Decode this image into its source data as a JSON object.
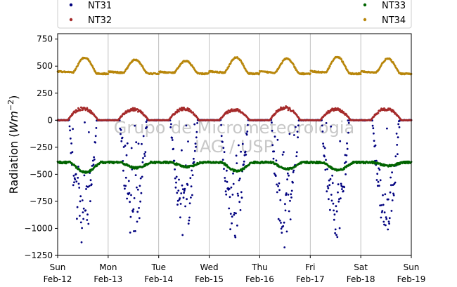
{
  "chart_data": {
    "type": "scatter",
    "ylabel": "Radiation (W m⁻²)",
    "ylim": [
      -1250,
      800
    ],
    "yticks": [
      -1250,
      -1000,
      -750,
      -500,
      -250,
      0,
      250,
      500,
      750
    ],
    "xlim_days": [
      0,
      7
    ],
    "grid": "vertical",
    "legend_placement": "top",
    "x_ticks": [
      {
        "day": "Sun",
        "date": "Feb-12"
      },
      {
        "day": "Mon",
        "date": "Feb-13"
      },
      {
        "day": "Tue",
        "date": "Feb-14"
      },
      {
        "day": "Wed",
        "date": "Feb-15"
      },
      {
        "day": "Thu",
        "date": "Feb-16"
      },
      {
        "day": "Fri",
        "date": "Feb-17"
      },
      {
        "day": "Sat",
        "date": "Feb-18"
      },
      {
        "day": "Sun",
        "date": "Feb-19"
      }
    ],
    "watermark": {
      "line1": "Grupo de Micrometeorologia",
      "line2": "IAG / USP"
    },
    "series": [
      {
        "name": "NT31",
        "color": "#00007f",
        "night": 0,
        "peak": [
          -1150,
          -1120,
          -1090,
          -1130,
          -1180,
          -1100,
          -1040
        ]
      },
      {
        "name": "NT32",
        "color": "#a52a2a",
        "night": 0,
        "peak": [
          125,
          115,
          120,
          110,
          130,
          115,
          120
        ]
      },
      {
        "name": "NT33",
        "color": "#006400",
        "night": -390,
        "peak": [
          -480,
          -440,
          -430,
          -470,
          -450,
          -460,
          -420
        ]
      },
      {
        "name": "NT34",
        "color": "#b8860b",
        "night": 430,
        "peak": [
          575,
          555,
          545,
          575,
          565,
          580,
          565
        ]
      }
    ]
  }
}
